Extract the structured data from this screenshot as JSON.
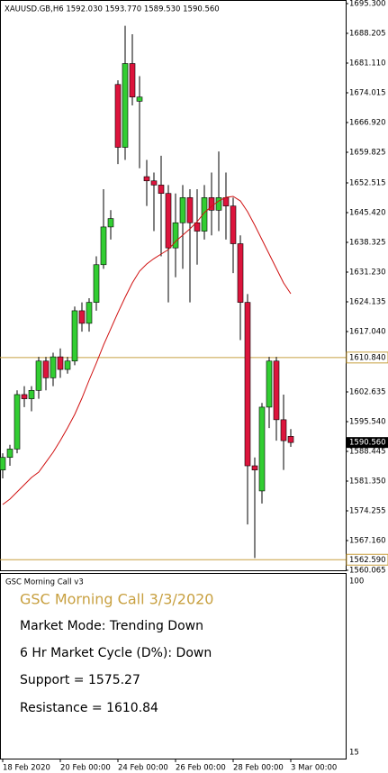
{
  "chart_data": {
    "type": "candlestick",
    "header": "XAUUSD.GB,H6  1592.030 1593.770 1589.530 1590.560",
    "categories": [
      "18 Feb 2020",
      null,
      null,
      null,
      null,
      null,
      null,
      null,
      "20 Feb 00:00",
      null,
      null,
      null,
      null,
      null,
      null,
      null,
      "24 Feb 00:00",
      null,
      null,
      null,
      null,
      null,
      null,
      null,
      "26 Feb 00:00",
      null,
      null,
      null,
      null,
      null,
      null,
      null,
      "28 Feb 00:00",
      null,
      null,
      null,
      null,
      null,
      null,
      null,
      "3 Mar 00:00"
    ],
    "open": [
      1584,
      1587,
      1589,
      1602,
      1601,
      1603,
      1610,
      1606,
      1611,
      1608,
      1610,
      1622,
      1619,
      1624,
      1633,
      1642,
      1676,
      1661,
      1681,
      1672,
      1654,
      1653,
      1652,
      1650,
      1637,
      1643,
      1649,
      1643,
      1641,
      1649,
      1646,
      1649,
      1647,
      1638,
      1624,
      1585,
      1579,
      1599,
      1610,
      1596,
      1592.03
    ],
    "high": [
      1588,
      1590,
      1603,
      1604,
      1604,
      1611,
      1611,
      1612,
      1613,
      1611,
      1623,
      1624,
      1625,
      1635,
      1651,
      1646,
      1677,
      1690,
      1688,
      1678,
      1658,
      1655,
      1659,
      1652,
      1650,
      1652,
      1651,
      1651,
      1652,
      1655,
      1660,
      1655,
      1649,
      1640,
      1626,
      1587,
      1600,
      1611,
      1611,
      1602,
      1593.77
    ],
    "low": [
      1582,
      1585,
      1588,
      1599,
      1598,
      1601,
      1603,
      1604,
      1606,
      1607,
      1609,
      1617,
      1617,
      1622,
      1632,
      1639,
      1657,
      1658,
      1671,
      1656,
      1647,
      1641,
      1635,
      1624,
      1630,
      1632,
      1624,
      1633,
      1639,
      1640,
      1641,
      1639,
      1631,
      1615,
      1571,
      1563,
      1576,
      1594,
      1591,
      1584,
      1589.53
    ],
    "close": [
      1587,
      1589,
      1602,
      1601,
      1603,
      1610,
      1606,
      1611,
      1608,
      1610,
      1622,
      1619,
      1624,
      1633,
      1642,
      1644,
      1661,
      1681,
      1673,
      1673,
      1653,
      1652,
      1650,
      1637,
      1643,
      1649,
      1643,
      1641,
      1649,
      1646,
      1649,
      1647,
      1638,
      1624,
      1585,
      1584,
      1599,
      1610,
      1596,
      1591,
      1590.56
    ],
    "up_color": "#32cd32",
    "down_color": "#dc143c",
    "ma": {
      "color": "#d01010",
      "values": [
        1575.76,
        1577.05,
        1578.77,
        1580.49,
        1582.21,
        1583.5,
        1585.86,
        1588.23,
        1591.02,
        1594.03,
        1597.26,
        1601.13,
        1605.43,
        1609.51,
        1613.81,
        1617.68,
        1621.55,
        1625.21,
        1628.65,
        1631.44,
        1633.16,
        1634.45,
        1635.53,
        1636.6,
        1638.54,
        1640.04,
        1641.55,
        1643.27,
        1645.42,
        1646.92,
        1648.21,
        1649.07,
        1649.29,
        1648.21,
        1645.63,
        1642.41,
        1638.97,
        1635.53,
        1632.09,
        1628.65,
        1626.07
      ]
    },
    "ylim": [
      1560.065,
      1696.16
    ],
    "yticks": [
      {
        "value": 1695.3,
        "label": "1695.300"
      },
      {
        "value": 1688.205,
        "label": "1688.205"
      },
      {
        "value": 1681.11,
        "label": "1681.110"
      },
      {
        "value": 1674.015,
        "label": "1674.015"
      },
      {
        "value": 1666.92,
        "label": "1666.920"
      },
      {
        "value": 1659.825,
        "label": "1659.825"
      },
      {
        "value": 1652.515,
        "label": "1652.515"
      },
      {
        "value": 1645.42,
        "label": "1645.420"
      },
      {
        "value": 1638.325,
        "label": "1638.325"
      },
      {
        "value": 1631.23,
        "label": "1631.230"
      },
      {
        "value": 1624.135,
        "label": "1624.135"
      },
      {
        "value": 1617.04,
        "label": "1617.040"
      },
      {
        "value": 1602.635,
        "label": "1602.635"
      },
      {
        "value": 1595.54,
        "label": "1595.540"
      },
      {
        "value": 1588.445,
        "label": "1588.445"
      },
      {
        "value": 1581.35,
        "label": "1581.350"
      },
      {
        "value": 1574.255,
        "label": "1574.255"
      },
      {
        "value": 1567.16,
        "label": "1567.160"
      },
      {
        "value": 1560.065,
        "label": "1560.065"
      }
    ],
    "levels": [
      {
        "value": 1610.84,
        "label": "1610.840"
      },
      {
        "value": 1562.59,
        "label": "1562.590"
      }
    ],
    "level_color": "#c8a040",
    "current_price": {
      "value": 1590.56,
      "label": "1590.560"
    }
  },
  "indicator": {
    "name": "GSC Morning Call v3",
    "title": "GSC Morning Call 3/3/2020",
    "lines": [
      "Market Mode: Trending Down",
      "6 Hr Market Cycle (D%): Down",
      "Support = 1575.27",
      "Resistance = 1610.84"
    ],
    "scale_labels": [
      100,
      15
    ]
  }
}
